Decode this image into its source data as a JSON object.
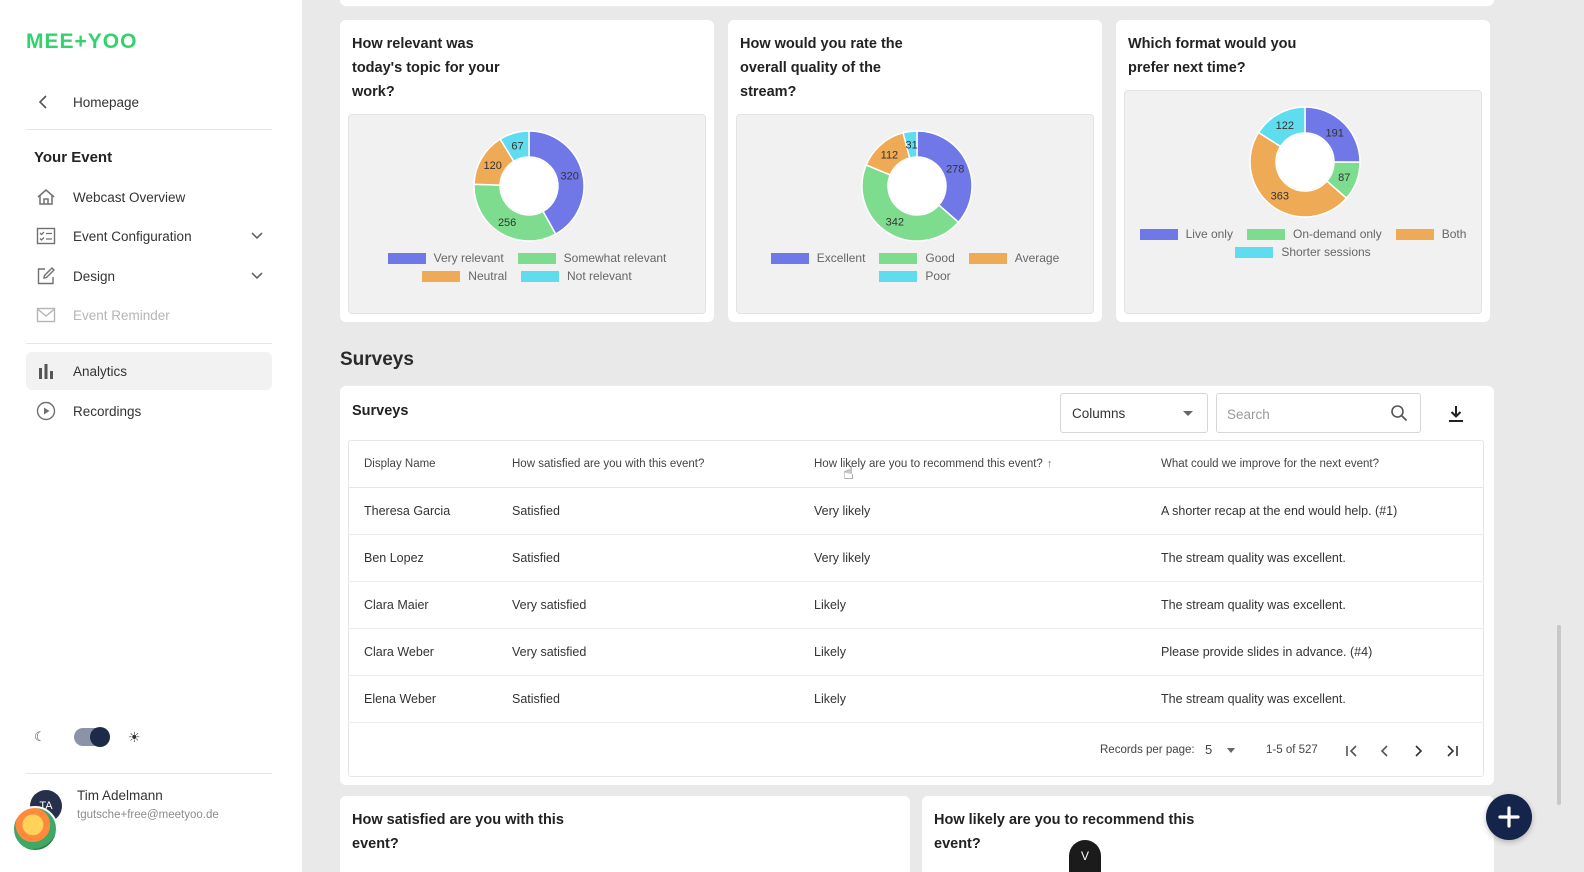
{
  "app": {
    "logo": "MEE+YOO"
  },
  "sidebar": {
    "back_label": "Homepage",
    "section_title": "Your Event",
    "items": [
      {
        "label": "Webcast Overview",
        "icon": "home-icon"
      },
      {
        "label": "Event Configuration",
        "icon": "checklist-icon",
        "expandable": true
      },
      {
        "label": "Design",
        "icon": "edit-icon",
        "expandable": true
      },
      {
        "label": "Event Reminder",
        "icon": "mail-icon",
        "disabled": true
      },
      {
        "label": "Analytics",
        "icon": "bar-chart-icon",
        "active": true
      },
      {
        "label": "Recordings",
        "icon": "play-circle-icon"
      }
    ],
    "theme": {
      "dark_icon": "☾",
      "light_icon": "☀",
      "light_mode": true
    },
    "user": {
      "initials": "TA",
      "name": "Tim Adelmann",
      "email": "tgutsche+free@meetyoo.de"
    }
  },
  "polls": [
    {
      "question": "How relevant was today's topic for your work?",
      "legend": [
        "Very relevant",
        "Somewhat relevant",
        "Neutral",
        "Not relevant"
      ],
      "colors": [
        "#7077e6",
        "#7edc8f",
        "#eeaa55",
        "#5fdcee"
      ],
      "values": [
        320,
        256,
        120,
        67
      ]
    },
    {
      "question": "How would you rate the overall quality of the stream?",
      "legend": [
        "Excellent",
        "Good",
        "Average",
        "Poor"
      ],
      "colors": [
        "#7077e6",
        "#7edc8f",
        "#eeaa55",
        "#5fdcee"
      ],
      "values": [
        278,
        342,
        112,
        31
      ]
    },
    {
      "question": "Which format would you prefer next time?",
      "legend": [
        "Live only",
        "On-demand only",
        "Both",
        "Shorter sessions"
      ],
      "colors": [
        "#7077e6",
        "#7edc8f",
        "#eeaa55",
        "#5fdcee"
      ],
      "values": [
        191,
        87,
        363,
        122
      ]
    }
  ],
  "surveys": {
    "heading": "Surveys",
    "card_title": "Surveys",
    "columns_label": "Columns",
    "search_placeholder": "Search",
    "headers": [
      "Display Name",
      "How satisfied are you with this event?",
      "How likely are you to recommend this event?",
      "What could we improve for the next event?"
    ],
    "rows": [
      [
        "Theresa Garcia",
        "Satisfied",
        "Very likely",
        "A shorter recap at the end would help. (#1)"
      ],
      [
        "Ben Lopez",
        "Satisfied",
        "Very likely",
        "The stream quality was excellent."
      ],
      [
        "Clara Maier",
        "Very satisfied",
        "Likely",
        "The stream quality was excellent."
      ],
      [
        "Clara Weber",
        "Very satisfied",
        "Likely",
        "Please provide slides in advance. (#4)"
      ],
      [
        "Elena Weber",
        "Satisfied",
        "Likely",
        "The stream quality was excellent."
      ]
    ],
    "pagination": {
      "rpp_label": "Records per page:",
      "rpp_value": "5",
      "range": "1-5 of 527"
    }
  },
  "bottom_cards": [
    {
      "question": "How satisfied are you with this event?"
    },
    {
      "question": "How likely are you to recommend this event?"
    }
  ],
  "scroll_handle_label": "V"
}
